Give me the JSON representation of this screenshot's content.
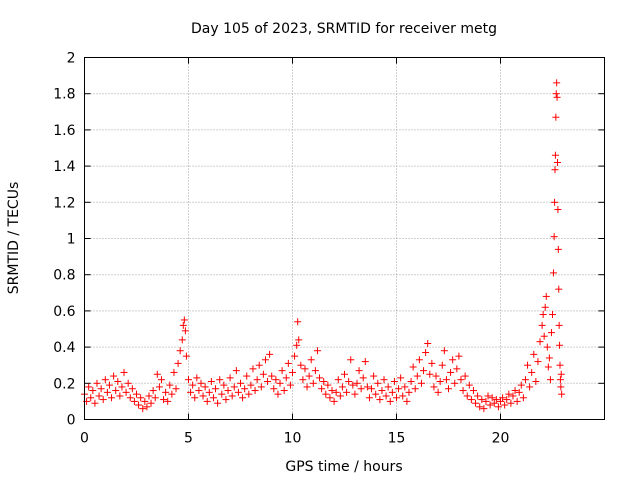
{
  "chart_data": {
    "type": "scatter",
    "title": "Day 105 of 2023, SRMTID for receiver metg",
    "xlabel": "GPS time / hours",
    "ylabel": "SRMTID / TECUs",
    "xlim": [
      0,
      25
    ],
    "ylim": [
      0,
      2
    ],
    "xticks": [
      0,
      5,
      10,
      15,
      20
    ],
    "xtick_labels": [
      "0",
      "5",
      "10",
      "15",
      "20"
    ],
    "yticks": [
      0,
      0.2,
      0.4,
      0.6,
      0.8,
      1,
      1.2,
      1.4,
      1.6,
      1.8,
      2
    ],
    "ytick_labels": [
      "0",
      "0.2",
      "0.4",
      "0.6",
      "0.8",
      "1",
      "1.2",
      "1.4",
      "1.6",
      "1.8",
      "2"
    ],
    "grid": true,
    "marker": "+",
    "marker_color": "#ff0000",
    "series": [
      {
        "name": "SRMTID",
        "points": [
          [
            0.0,
            0.14
          ],
          [
            0.1,
            0.1
          ],
          [
            0.2,
            0.18
          ],
          [
            0.3,
            0.12
          ],
          [
            0.4,
            0.16
          ],
          [
            0.5,
            0.09
          ],
          [
            0.6,
            0.2
          ],
          [
            0.7,
            0.13
          ],
          [
            0.8,
            0.17
          ],
          [
            0.9,
            0.11
          ],
          [
            1.0,
            0.22
          ],
          [
            1.1,
            0.15
          ],
          [
            1.2,
            0.19
          ],
          [
            1.3,
            0.12
          ],
          [
            1.4,
            0.24
          ],
          [
            1.5,
            0.16
          ],
          [
            1.6,
            0.21
          ],
          [
            1.7,
            0.13
          ],
          [
            1.8,
            0.18
          ],
          [
            1.9,
            0.26
          ],
          [
            2.0,
            0.15
          ],
          [
            2.1,
            0.2
          ],
          [
            2.2,
            0.12
          ],
          [
            2.3,
            0.17
          ],
          [
            2.4,
            0.1
          ],
          [
            2.5,
            0.14
          ],
          [
            2.6,
            0.08
          ],
          [
            2.7,
            0.12
          ],
          [
            2.8,
            0.06
          ],
          [
            2.9,
            0.1
          ],
          [
            3.0,
            0.07
          ],
          [
            3.1,
            0.13
          ],
          [
            3.2,
            0.09
          ],
          [
            3.3,
            0.16
          ],
          [
            3.4,
            0.12
          ],
          [
            3.5,
            0.25
          ],
          [
            3.6,
            0.18
          ],
          [
            3.7,
            0.22
          ],
          [
            3.8,
            0.11
          ],
          [
            3.9,
            0.15
          ],
          [
            4.0,
            0.1
          ],
          [
            4.1,
            0.19
          ],
          [
            4.2,
            0.14
          ],
          [
            4.3,
            0.26
          ],
          [
            4.4,
            0.17
          ],
          [
            4.5,
            0.31
          ],
          [
            4.6,
            0.38
          ],
          [
            4.7,
            0.44
          ],
          [
            4.75,
            0.52
          ],
          [
            4.8,
            0.55
          ],
          [
            4.85,
            0.49
          ],
          [
            4.9,
            0.35
          ],
          [
            5.0,
            0.22
          ],
          [
            5.1,
            0.15
          ],
          [
            5.2,
            0.19
          ],
          [
            5.3,
            0.12
          ],
          [
            5.4,
            0.23
          ],
          [
            5.5,
            0.16
          ],
          [
            5.6,
            0.2
          ],
          [
            5.7,
            0.13
          ],
          [
            5.8,
            0.18
          ],
          [
            5.9,
            0.1
          ],
          [
            6.0,
            0.15
          ],
          [
            6.1,
            0.21
          ],
          [
            6.2,
            0.12
          ],
          [
            6.3,
            0.17
          ],
          [
            6.4,
            0.09
          ],
          [
            6.5,
            0.22
          ],
          [
            6.6,
            0.14
          ],
          [
            6.7,
            0.19
          ],
          [
            6.8,
            0.11
          ],
          [
            6.9,
            0.16
          ],
          [
            7.0,
            0.23
          ],
          [
            7.1,
            0.13
          ],
          [
            7.2,
            0.18
          ],
          [
            7.3,
            0.27
          ],
          [
            7.4,
            0.15
          ],
          [
            7.5,
            0.2
          ],
          [
            7.6,
            0.12
          ],
          [
            7.7,
            0.17
          ],
          [
            7.8,
            0.24
          ],
          [
            7.9,
            0.14
          ],
          [
            8.0,
            0.19
          ],
          [
            8.1,
            0.28
          ],
          [
            8.2,
            0.16
          ],
          [
            8.3,
            0.22
          ],
          [
            8.4,
            0.3
          ],
          [
            8.5,
            0.18
          ],
          [
            8.6,
            0.25
          ],
          [
            8.7,
            0.33
          ],
          [
            8.8,
            0.21
          ],
          [
            8.9,
            0.36
          ],
          [
            9.0,
            0.24
          ],
          [
            9.1,
            0.17
          ],
          [
            9.2,
            0.22
          ],
          [
            9.3,
            0.14
          ],
          [
            9.4,
            0.2
          ],
          [
            9.5,
            0.27
          ],
          [
            9.6,
            0.16
          ],
          [
            9.7,
            0.23
          ],
          [
            9.8,
            0.31
          ],
          [
            9.9,
            0.19
          ],
          [
            10.0,
            0.26
          ],
          [
            10.1,
            0.35
          ],
          [
            10.2,
            0.41
          ],
          [
            10.25,
            0.54
          ],
          [
            10.3,
            0.44
          ],
          [
            10.4,
            0.3
          ],
          [
            10.5,
            0.22
          ],
          [
            10.6,
            0.28
          ],
          [
            10.7,
            0.18
          ],
          [
            10.8,
            0.24
          ],
          [
            10.9,
            0.33
          ],
          [
            11.0,
            0.2
          ],
          [
            11.1,
            0.27
          ],
          [
            11.2,
            0.38
          ],
          [
            11.3,
            0.23
          ],
          [
            11.4,
            0.17
          ],
          [
            11.5,
            0.21
          ],
          [
            11.6,
            0.14
          ],
          [
            11.7,
            0.19
          ],
          [
            11.8,
            0.12
          ],
          [
            11.9,
            0.16
          ],
          [
            12.0,
            0.1
          ],
          [
            12.1,
            0.15
          ],
          [
            12.2,
            0.22
          ],
          [
            12.3,
            0.13
          ],
          [
            12.4,
            0.18
          ],
          [
            12.5,
            0.25
          ],
          [
            12.6,
            0.15
          ],
          [
            12.7,
            0.21
          ],
          [
            12.8,
            0.33
          ],
          [
            12.9,
            0.19
          ],
          [
            13.0,
            0.14
          ],
          [
            13.1,
            0.2
          ],
          [
            13.2,
            0.27
          ],
          [
            13.3,
            0.17
          ],
          [
            13.4,
            0.23
          ],
          [
            13.5,
            0.32
          ],
          [
            13.6,
            0.18
          ],
          [
            13.7,
            0.12
          ],
          [
            13.8,
            0.17
          ],
          [
            13.9,
            0.24
          ],
          [
            14.0,
            0.14
          ],
          [
            14.1,
            0.2
          ],
          [
            14.2,
            0.11
          ],
          [
            14.3,
            0.16
          ],
          [
            14.4,
            0.22
          ],
          [
            14.5,
            0.13
          ],
          [
            14.6,
            0.18
          ],
          [
            14.7,
            0.1
          ],
          [
            14.8,
            0.15
          ],
          [
            14.9,
            0.21
          ],
          [
            15.0,
            0.12
          ],
          [
            15.1,
            0.17
          ],
          [
            15.2,
            0.23
          ],
          [
            15.3,
            0.13
          ],
          [
            15.4,
            0.18
          ],
          [
            15.5,
            0.1
          ],
          [
            15.6,
            0.15
          ],
          [
            15.7,
            0.21
          ],
          [
            15.8,
            0.29
          ],
          [
            15.9,
            0.17
          ],
          [
            16.0,
            0.24
          ],
          [
            16.1,
            0.33
          ],
          [
            16.2,
            0.2
          ],
          [
            16.3,
            0.27
          ],
          [
            16.4,
            0.37
          ],
          [
            16.5,
            0.42
          ],
          [
            16.6,
            0.25
          ],
          [
            16.7,
            0.31
          ],
          [
            16.8,
            0.18
          ],
          [
            16.9,
            0.24
          ],
          [
            17.0,
            0.15
          ],
          [
            17.1,
            0.21
          ],
          [
            17.2,
            0.3
          ],
          [
            17.3,
            0.38
          ],
          [
            17.4,
            0.22
          ],
          [
            17.5,
            0.17
          ],
          [
            17.6,
            0.26
          ],
          [
            17.7,
            0.33
          ],
          [
            17.8,
            0.2
          ],
          [
            17.9,
            0.28
          ],
          [
            18.0,
            0.35
          ],
          [
            18.1,
            0.22
          ],
          [
            18.2,
            0.16
          ],
          [
            18.3,
            0.24
          ],
          [
            18.4,
            0.13
          ],
          [
            18.5,
            0.19
          ],
          [
            18.6,
            0.11
          ],
          [
            18.7,
            0.16
          ],
          [
            18.8,
            0.09
          ],
          [
            18.9,
            0.13
          ],
          [
            19.0,
            0.07
          ],
          [
            19.1,
            0.11
          ],
          [
            19.2,
            0.06
          ],
          [
            19.3,
            0.1
          ],
          [
            19.4,
            0.13
          ],
          [
            19.5,
            0.08
          ],
          [
            19.6,
            0.12
          ],
          [
            19.7,
            0.09
          ],
          [
            19.8,
            0.11
          ],
          [
            19.9,
            0.07
          ],
          [
            20.0,
            0.1
          ],
          [
            20.1,
            0.12
          ],
          [
            20.2,
            0.08
          ],
          [
            20.3,
            0.11
          ],
          [
            20.4,
            0.14
          ],
          [
            20.5,
            0.09
          ],
          [
            20.6,
            0.13
          ],
          [
            20.7,
            0.16
          ],
          [
            20.8,
            0.1
          ],
          [
            20.9,
            0.15
          ],
          [
            21.0,
            0.19
          ],
          [
            21.1,
            0.12
          ],
          [
            21.2,
            0.22
          ],
          [
            21.3,
            0.3
          ],
          [
            21.4,
            0.18
          ],
          [
            21.5,
            0.26
          ],
          [
            21.6,
            0.36
          ],
          [
            21.7,
            0.21
          ],
          [
            21.8,
            0.32
          ],
          [
            21.9,
            0.43
          ],
          [
            22.0,
            0.52
          ],
          [
            22.05,
            0.58
          ],
          [
            22.1,
            0.46
          ],
          [
            22.15,
            0.62
          ],
          [
            22.2,
            0.68
          ],
          [
            22.25,
            0.4
          ],
          [
            22.3,
            0.29
          ],
          [
            22.35,
            0.34
          ],
          [
            22.4,
            0.22
          ],
          [
            22.45,
            0.48
          ],
          [
            22.5,
            0.58
          ],
          [
            22.55,
            0.81
          ],
          [
            22.58,
            1.01
          ],
          [
            22.6,
            1.2
          ],
          [
            22.62,
            1.38
          ],
          [
            22.64,
            1.46
          ],
          [
            22.66,
            1.67
          ],
          [
            22.68,
            1.8
          ],
          [
            22.7,
            1.86
          ],
          [
            22.72,
            1.78
          ],
          [
            22.74,
            1.42
          ],
          [
            22.76,
            1.16
          ],
          [
            22.78,
            0.94
          ],
          [
            22.8,
            0.72
          ],
          [
            22.82,
            0.52
          ],
          [
            22.84,
            0.41
          ],
          [
            22.86,
            0.3
          ],
          [
            22.88,
            0.22
          ],
          [
            22.9,
            0.18
          ],
          [
            22.92,
            0.25
          ],
          [
            22.94,
            0.14
          ]
        ]
      }
    ]
  }
}
